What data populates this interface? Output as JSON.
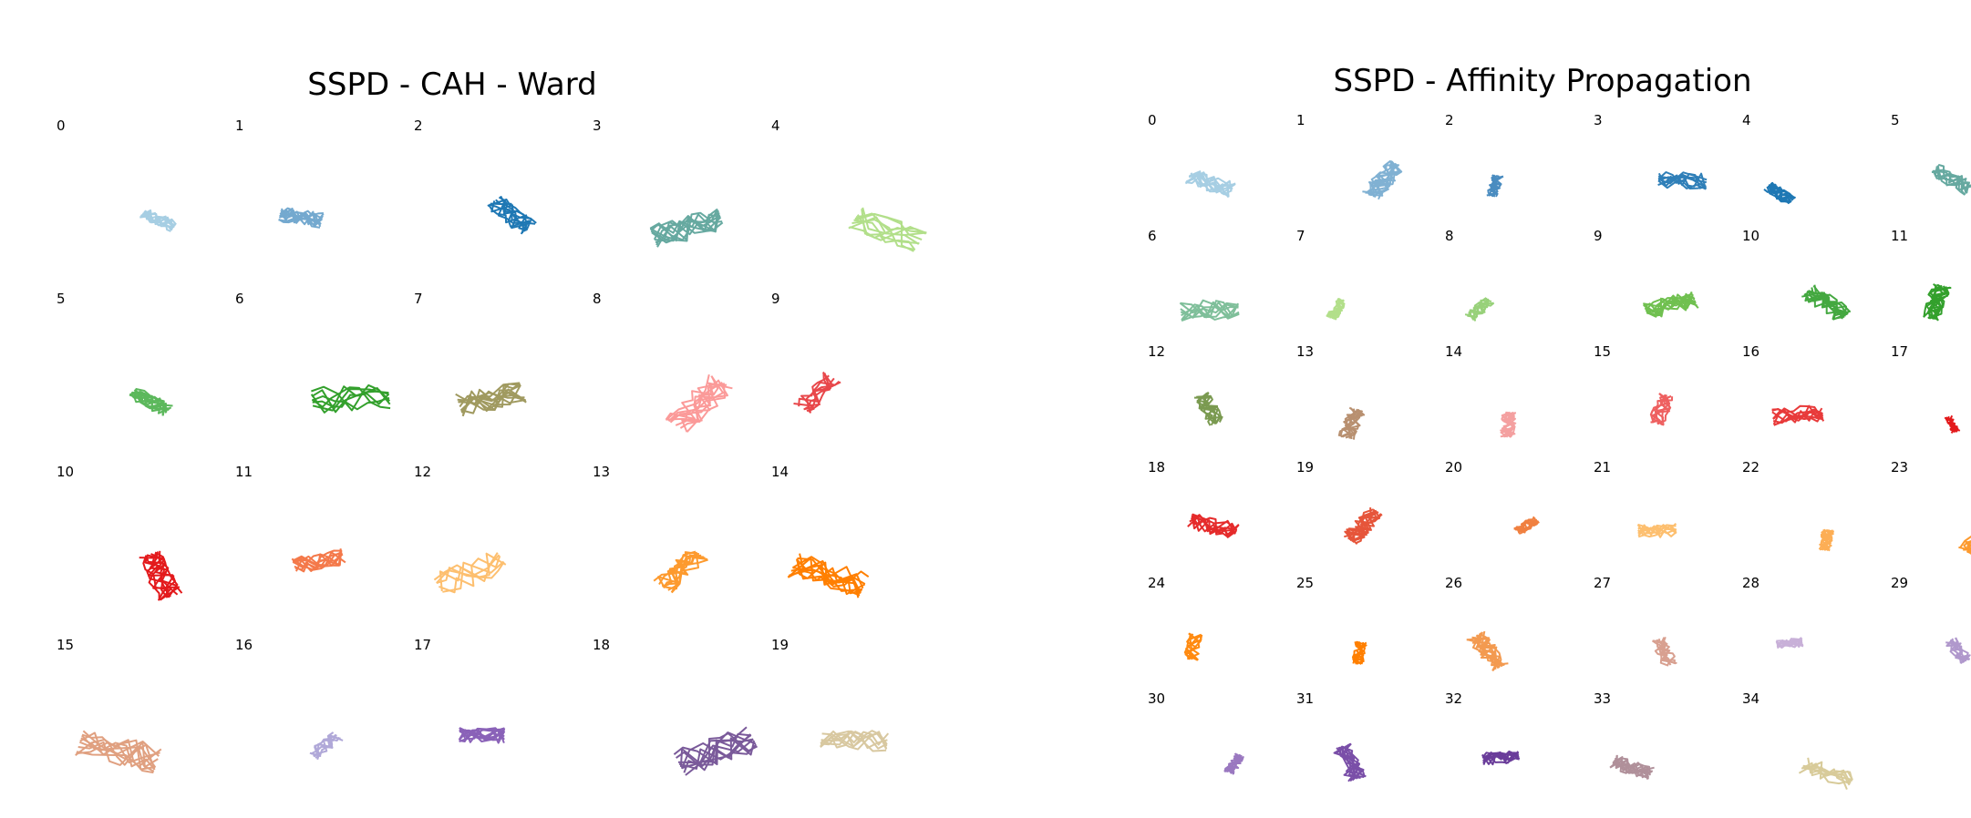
{
  "panels": [
    {
      "title": "SSPD - CAH - Ward",
      "clusters": [
        {
          "label": "0",
          "color": "#a6cee3"
        },
        {
          "label": "1",
          "color": "#74a9cf"
        },
        {
          "label": "2",
          "color": "#1f78b4"
        },
        {
          "label": "3",
          "color": "#66a9a0"
        },
        {
          "label": "4",
          "color": "#b2df8a"
        },
        {
          "label": "5",
          "color": "#5cb85c"
        },
        {
          "label": "6",
          "color": "#33a02c"
        },
        {
          "label": "7",
          "color": "#a09a60"
        },
        {
          "label": "8",
          "color": "#fb9a99"
        },
        {
          "label": "9",
          "color": "#e8474a"
        },
        {
          "label": "10",
          "color": "#e31a1c"
        },
        {
          "label": "11",
          "color": "#f4794a"
        },
        {
          "label": "12",
          "color": "#fdbf6f"
        },
        {
          "label": "13",
          "color": "#fd9a2e"
        },
        {
          "label": "14",
          "color": "#ff7f00"
        },
        {
          "label": "15",
          "color": "#e0a080"
        },
        {
          "label": "16",
          "color": "#b0a8d8"
        },
        {
          "label": "17",
          "color": "#8a62b8"
        },
        {
          "label": "18",
          "color": "#7a5a9a"
        },
        {
          "label": "19",
          "color": "#d8c8a0"
        }
      ]
    },
    {
      "title": "SSPD - Affinity Propagation",
      "clusters": [
        {
          "label": "0",
          "color": "#a6cee3"
        },
        {
          "label": "1",
          "color": "#80b1d3"
        },
        {
          "label": "2",
          "color": "#4a8cc0"
        },
        {
          "label": "3",
          "color": "#2f7fb8"
        },
        {
          "label": "4",
          "color": "#1f78b4"
        },
        {
          "label": "5",
          "color": "#66a9a0"
        },
        {
          "label": "6",
          "color": "#7fbf9a"
        },
        {
          "label": "7",
          "color": "#b2df8a"
        },
        {
          "label": "8",
          "color": "#98d17a"
        },
        {
          "label": "9",
          "color": "#70c050"
        },
        {
          "label": "10",
          "color": "#44a840"
        },
        {
          "label": "11",
          "color": "#33a02c"
        },
        {
          "label": "12",
          "color": "#7a9a50"
        },
        {
          "label": "13",
          "color": "#b89070"
        },
        {
          "label": "14",
          "color": "#f4a0a0"
        },
        {
          "label": "15",
          "color": "#ee6060"
        },
        {
          "label": "16",
          "color": "#e83a3a"
        },
        {
          "label": "17",
          "color": "#e31a1c"
        },
        {
          "label": "18",
          "color": "#e52b2b"
        },
        {
          "label": "19",
          "color": "#e6553a"
        },
        {
          "label": "20",
          "color": "#f08040"
        },
        {
          "label": "21",
          "color": "#fdbf6f"
        },
        {
          "label": "22",
          "color": "#fdae55"
        },
        {
          "label": "23",
          "color": "#fd9a2e"
        },
        {
          "label": "24",
          "color": "#ff8a10"
        },
        {
          "label": "25",
          "color": "#ff7f00"
        },
        {
          "label": "26",
          "color": "#f39a50"
        },
        {
          "label": "27",
          "color": "#d8a090"
        },
        {
          "label": "28",
          "color": "#c8b0d8"
        },
        {
          "label": "29",
          "color": "#b098cc"
        },
        {
          "label": "30",
          "color": "#9a78c0"
        },
        {
          "label": "31",
          "color": "#7a4fa8"
        },
        {
          "label": "32",
          "color": "#6a3d9a"
        },
        {
          "label": "33",
          "color": "#b0909a"
        },
        {
          "label": "34",
          "color": "#d8cb9a"
        }
      ]
    }
  ]
}
